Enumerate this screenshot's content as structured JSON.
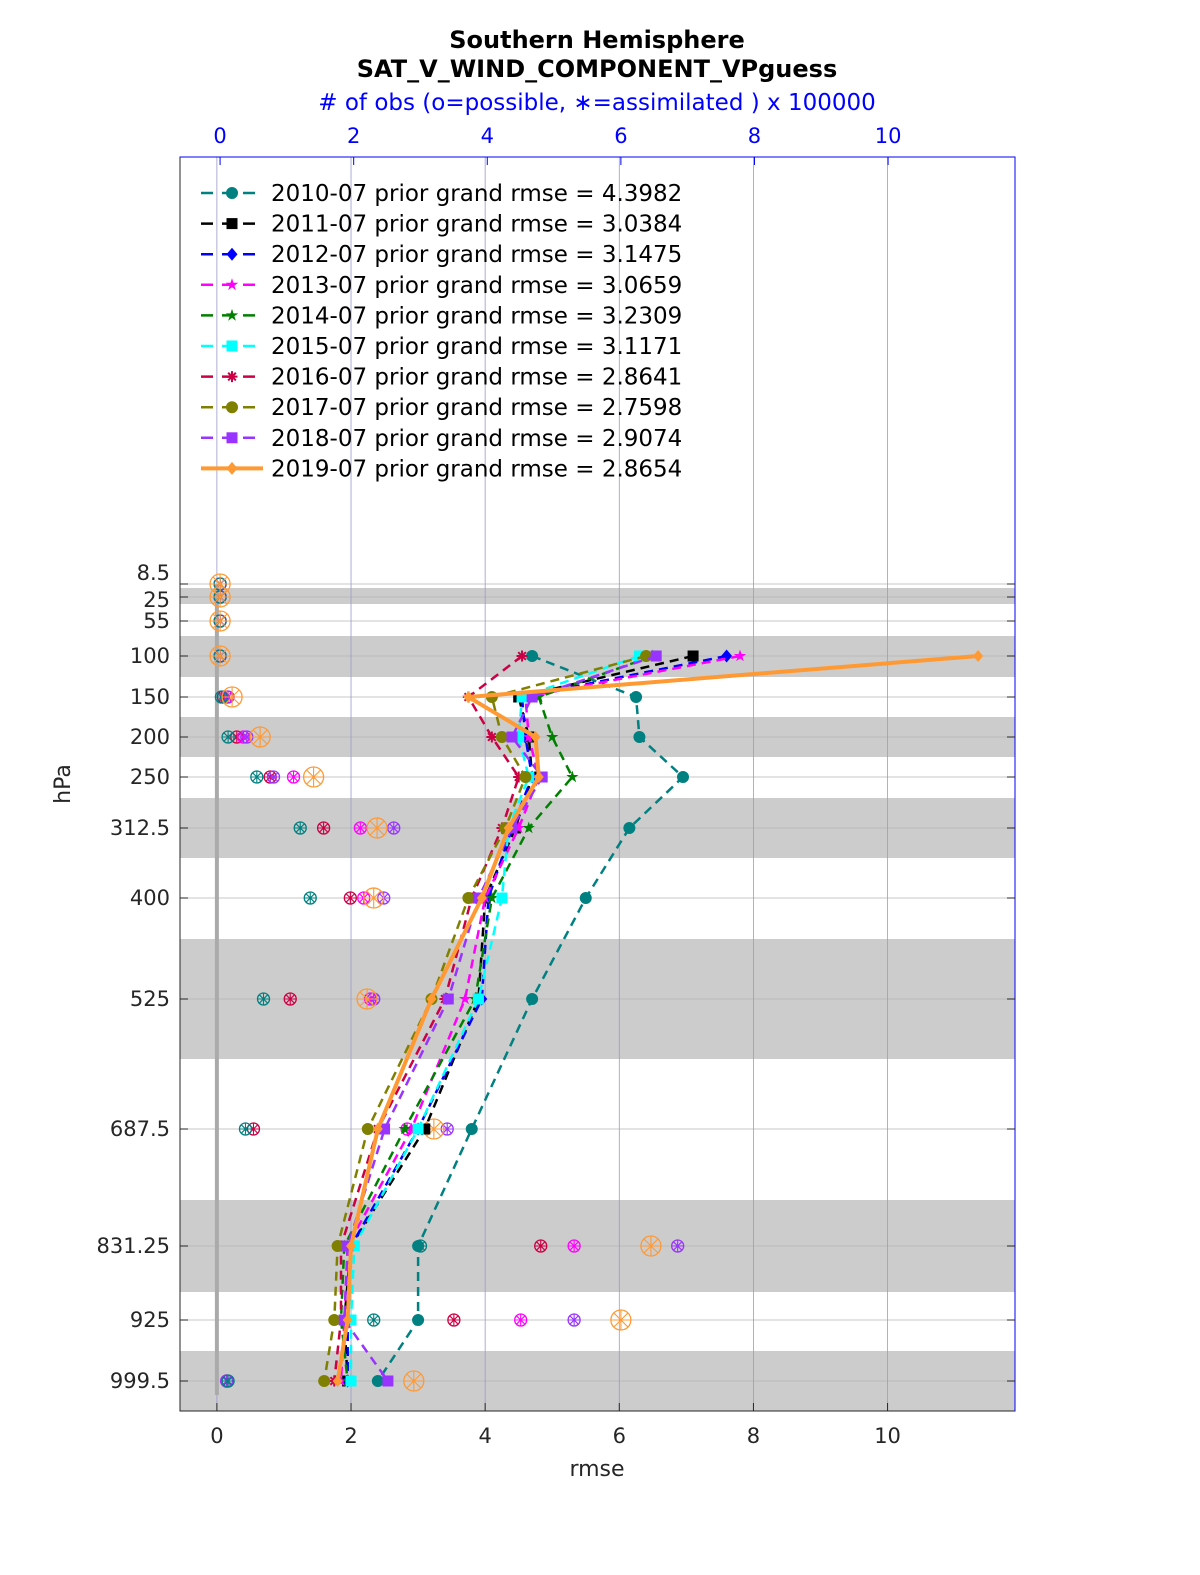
{
  "chart_data": {
    "type": "line",
    "title": "Southern Hemisphere",
    "subtitle": "SAT_V_WIND_COMPONENT_VPguess",
    "top_axis_label": "# of obs (o=possible, ∗=assimilated ) x 100000",
    "xlabel": "rmse",
    "ylabel": "hPa",
    "xlim": [
      -0.55,
      11.9
    ],
    "x_ticks": [
      "0",
      "2",
      "4",
      "6",
      "8",
      "10"
    ],
    "top_ticks": [
      "0",
      "2",
      "4",
      "6",
      "8",
      "10"
    ],
    "y_ticks": [
      "8.5",
      "25",
      "55",
      "100",
      "150",
      "200",
      "250",
      "312.5",
      "400",
      "525",
      "687.5",
      "831.25",
      "925",
      "999.5"
    ],
    "levels": [
      8.5,
      25,
      55,
      100,
      150,
      200,
      250,
      312.5,
      400,
      525,
      687.5,
      831.25,
      925,
      999.5
    ],
    "legend_position": "top-left",
    "series": [
      {
        "name": "2010-07 prior grand rmse = 4.3982",
        "color": "#008080",
        "marker": "circle",
        "dash": true,
        "values": [
          4.7,
          6.25,
          6.3,
          6.95,
          6.15,
          5.5,
          4.7,
          3.8,
          3.0,
          3.0,
          2.4
        ]
      },
      {
        "name": "2011-07 prior grand rmse = 3.0384",
        "color": "#000000",
        "marker": "square",
        "dash": true,
        "values": [
          7.1,
          4.5,
          4.65,
          4.7,
          4.45,
          4.0,
          3.9,
          3.1,
          2.0,
          1.9,
          1.95
        ]
      },
      {
        "name": "2012-07 prior grand rmse = 3.1475",
        "color": "#0000ff",
        "marker": "diamond",
        "dash": true,
        "values": [
          7.6,
          4.55,
          4.6,
          4.7,
          4.4,
          4.05,
          3.95,
          3.0,
          2.0,
          1.95,
          1.95
        ]
      },
      {
        "name": "2013-07 prior grand rmse = 3.0659",
        "color": "#ff00ff",
        "marker": "star",
        "dash": true,
        "values": [
          7.8,
          4.6,
          4.65,
          4.8,
          4.5,
          4.0,
          3.7,
          2.9,
          1.95,
          1.9,
          1.85
        ]
      },
      {
        "name": "2014-07 prior grand rmse = 3.2309",
        "color": "#008000",
        "marker": "star",
        "dash": true,
        "values": [
          6.5,
          4.8,
          5.0,
          5.3,
          4.65,
          4.1,
          3.85,
          2.8,
          1.9,
          1.85,
          1.95
        ]
      },
      {
        "name": "2015-07 prior grand rmse = 3.1171",
        "color": "#00ffff",
        "marker": "square",
        "dash": true,
        "values": [
          6.3,
          4.55,
          4.5,
          4.65,
          4.35,
          4.25,
          3.9,
          3.0,
          2.05,
          2.0,
          2.0
        ]
      },
      {
        "name": "2016-07 prior grand rmse = 2.8641",
        "color": "#cc0044",
        "marker": "asterisk",
        "dash": true,
        "values": [
          4.55,
          3.75,
          4.1,
          4.5,
          4.25,
          3.8,
          3.4,
          2.4,
          1.85,
          1.85,
          1.75
        ]
      },
      {
        "name": "2017-07 prior grand rmse = 2.7598",
        "color": "#808000",
        "marker": "circle",
        "dash": true,
        "values": [
          6.4,
          4.1,
          4.25,
          4.6,
          4.3,
          3.75,
          3.2,
          2.25,
          1.8,
          1.75,
          1.6
        ]
      },
      {
        "name": "2018-07 prior grand rmse = 2.9074",
        "color": "#9933ff",
        "marker": "square",
        "dash": true,
        "values": [
          6.55,
          4.7,
          4.4,
          4.85,
          4.4,
          3.9,
          3.45,
          2.5,
          1.95,
          1.9,
          2.55
        ]
      },
      {
        "name": "2019-07 prior grand rmse = 2.8654",
        "color": "#ff9933",
        "marker": "diamond",
        "dash": false,
        "values": [
          11.35,
          3.75,
          4.75,
          4.8,
          4.35,
          3.95,
          3.2,
          2.4,
          2.0,
          1.95,
          1.8
        ]
      }
    ],
    "obs_counts": {
      "note": "x 100000, plotted at levels 8.5..999.5",
      "possible_2019": [
        0.0,
        0.0,
        0.0,
        0.0,
        0.18,
        0.6,
        1.4,
        2.35,
        2.3,
        2.2,
        3.2,
        6.45,
        6.0,
        2.9
      ],
      "possible_2010": [
        0.0,
        0.0,
        0.0,
        0.0,
        0.02,
        0.12,
        0.55,
        1.2,
        1.35,
        0.65,
        0.38,
        3.0,
        2.3,
        0.12
      ],
      "scatter_others": [
        [
          0.0,
          0.0,
          0.0,
          0.0,
          0.05,
          0.25,
          0.75,
          1.55,
          1.95,
          1.05,
          0.5,
          4.8,
          3.5,
          0.1
        ],
        [
          0.0,
          0.0,
          0.0,
          0.0,
          0.1,
          0.35,
          1.1,
          2.1,
          2.15,
          2.25,
          2.8,
          5.3,
          4.5,
          0.1
        ],
        [
          0.0,
          0.0,
          0.0,
          0.0,
          0.12,
          0.4,
          0.8,
          2.6,
          2.45,
          2.3,
          3.4,
          6.85,
          5.3,
          0.1
        ]
      ]
    }
  }
}
